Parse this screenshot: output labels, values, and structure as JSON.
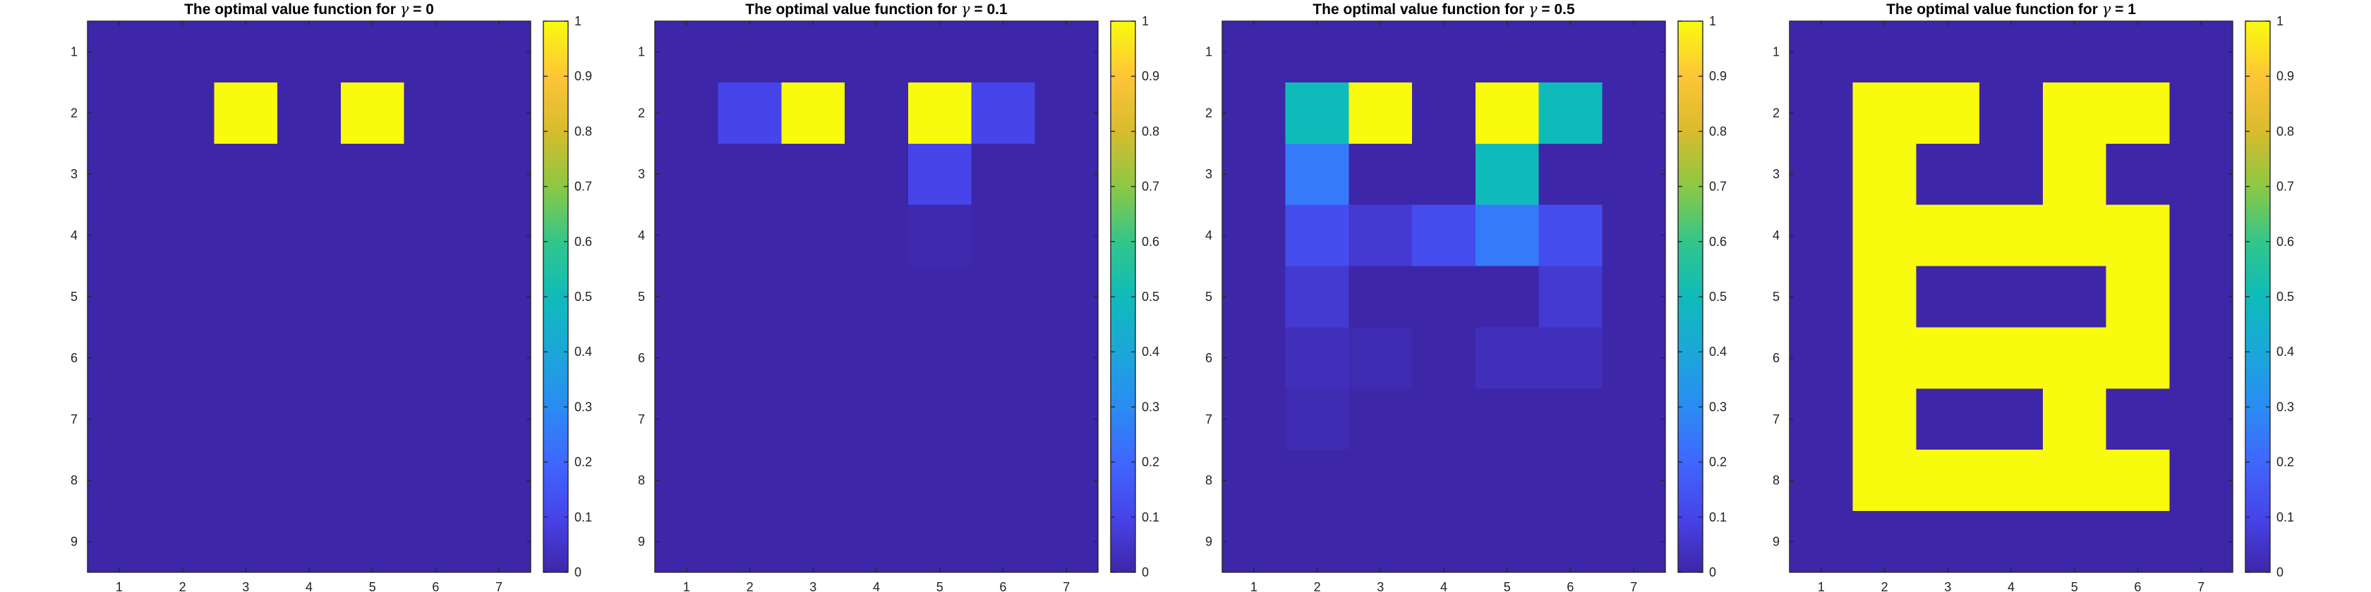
{
  "chart_data": [
    {
      "type": "heatmap",
      "title_prefix": "The optimal value function for ",
      "title_symbol": "γ",
      "title_suffix": " = 0",
      "x_ticks": [
        "1",
        "2",
        "3",
        "4",
        "5",
        "6",
        "7"
      ],
      "y_ticks": [
        "1",
        "2",
        "3",
        "4",
        "5",
        "6",
        "7",
        "8",
        "9"
      ],
      "colorbar_ticks": [
        "0",
        "0.1",
        "0.2",
        "0.3",
        "0.4",
        "0.5",
        "0.6",
        "0.7",
        "0.8",
        "0.9",
        "1"
      ],
      "clim": [
        0,
        1
      ],
      "colormap": "parula",
      "grid": false,
      "values": [
        [
          0,
          0,
          0,
          0,
          0,
          0,
          0
        ],
        [
          0,
          0,
          1,
          0,
          1,
          0,
          0
        ],
        [
          0,
          0,
          0,
          0,
          0,
          0,
          0
        ],
        [
          0,
          0,
          0,
          0,
          0,
          0,
          0
        ],
        [
          0,
          0,
          0,
          0,
          0,
          0,
          0
        ],
        [
          0,
          0,
          0,
          0,
          0,
          0,
          0
        ],
        [
          0,
          0,
          0,
          0,
          0,
          0,
          0
        ],
        [
          0,
          0,
          0,
          0,
          0,
          0,
          0
        ],
        [
          0,
          0,
          0,
          0,
          0,
          0,
          0
        ]
      ]
    },
    {
      "type": "heatmap",
      "title_prefix": "The optimal value function for ",
      "title_symbol": "γ",
      "title_suffix": " = 0.1",
      "x_ticks": [
        "1",
        "2",
        "3",
        "4",
        "5",
        "6",
        "7"
      ],
      "y_ticks": [
        "1",
        "2",
        "3",
        "4",
        "5",
        "6",
        "7",
        "8",
        "9"
      ],
      "colorbar_ticks": [
        "0",
        "0.1",
        "0.2",
        "0.3",
        "0.4",
        "0.5",
        "0.6",
        "0.7",
        "0.8",
        "0.9",
        "1"
      ],
      "clim": [
        0,
        1
      ],
      "colormap": "parula",
      "grid": false,
      "values": [
        [
          0,
          0,
          0,
          0,
          0,
          0,
          0
        ],
        [
          0,
          0.1,
          1,
          0,
          1,
          0.1,
          0
        ],
        [
          0,
          0,
          0,
          0,
          0.1,
          0,
          0
        ],
        [
          0,
          0,
          0,
          0,
          0.01,
          0,
          0
        ],
        [
          0,
          0,
          0,
          0,
          0,
          0,
          0
        ],
        [
          0,
          0,
          0,
          0,
          0,
          0,
          0
        ],
        [
          0,
          0,
          0,
          0,
          0,
          0,
          0
        ],
        [
          0,
          0,
          0,
          0,
          0,
          0,
          0
        ],
        [
          0,
          0,
          0,
          0,
          0,
          0,
          0
        ]
      ]
    },
    {
      "type": "heatmap",
      "title_prefix": "The optimal value function for ",
      "title_symbol": "γ",
      "title_suffix": " = 0.5",
      "x_ticks": [
        "1",
        "2",
        "3",
        "4",
        "5",
        "6",
        "7"
      ],
      "y_ticks": [
        "1",
        "2",
        "3",
        "4",
        "5",
        "6",
        "7",
        "8",
        "9"
      ],
      "colorbar_ticks": [
        "0",
        "0.1",
        "0.2",
        "0.3",
        "0.4",
        "0.5",
        "0.6",
        "0.7",
        "0.8",
        "0.9",
        "1"
      ],
      "clim": [
        0,
        1
      ],
      "colormap": "parula",
      "grid": false,
      "values": [
        [
          0,
          0,
          0,
          0,
          0,
          0,
          0
        ],
        [
          0,
          0.5,
          1,
          0,
          1,
          0.5,
          0
        ],
        [
          0,
          0.25,
          0,
          0,
          0.5,
          0,
          0
        ],
        [
          0,
          0.125,
          0.0625,
          0.125,
          0.25,
          0.125,
          0
        ],
        [
          0,
          0.0625,
          0,
          0,
          0,
          0.0625,
          0
        ],
        [
          0,
          0.03125,
          0.015625,
          0,
          0.03125,
          0.03125,
          0
        ],
        [
          0,
          0.015625,
          0,
          0,
          0,
          0,
          0
        ],
        [
          0,
          0,
          0,
          0,
          0,
          0,
          0
        ],
        [
          0,
          0,
          0,
          0,
          0,
          0,
          0
        ]
      ]
    },
    {
      "type": "heatmap",
      "title_prefix": "The optimal value function for ",
      "title_symbol": "γ",
      "title_suffix": " = 1",
      "x_ticks": [
        "1",
        "2",
        "3",
        "4",
        "5",
        "6",
        "7"
      ],
      "y_ticks": [
        "1",
        "2",
        "3",
        "4",
        "5",
        "6",
        "7",
        "8",
        "9"
      ],
      "colorbar_ticks": [
        "0",
        "0.1",
        "0.2",
        "0.3",
        "0.4",
        "0.5",
        "0.6",
        "0.7",
        "0.8",
        "0.9",
        "1"
      ],
      "clim": [
        0,
        1
      ],
      "colormap": "parula",
      "grid": false,
      "values": [
        [
          0,
          0,
          0,
          0,
          0,
          0,
          0
        ],
        [
          0,
          1,
          1,
          0,
          1,
          1,
          0
        ],
        [
          0,
          1,
          0,
          0,
          1,
          0,
          0
        ],
        [
          0,
          1,
          1,
          1,
          1,
          1,
          0
        ],
        [
          0,
          1,
          0,
          0,
          0,
          1,
          0
        ],
        [
          0,
          1,
          1,
          1,
          1,
          1,
          0
        ],
        [
          0,
          1,
          0,
          0,
          1,
          0,
          0
        ],
        [
          0,
          1,
          1,
          1,
          1,
          1,
          0
        ],
        [
          0,
          0,
          0,
          0,
          0,
          0,
          0
        ]
      ]
    }
  ]
}
